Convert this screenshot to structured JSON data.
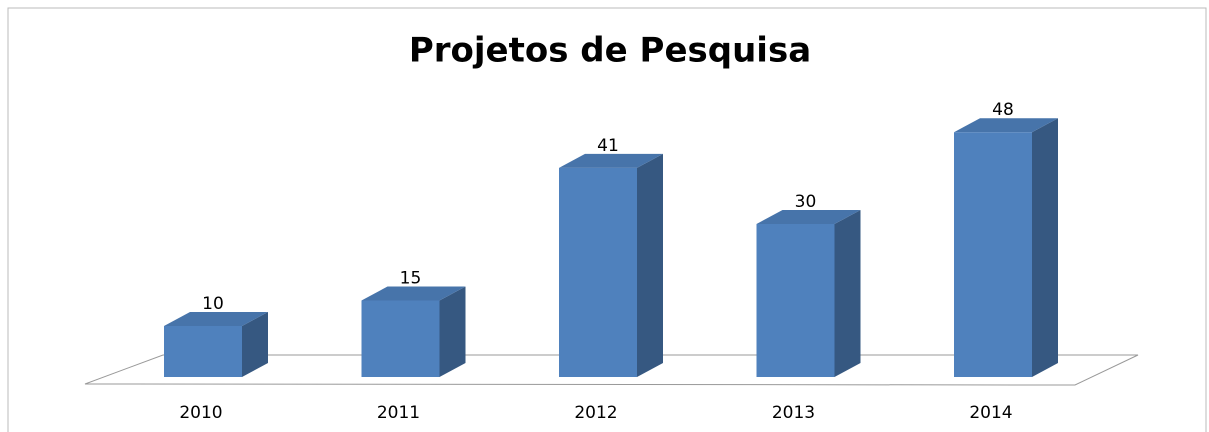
{
  "chart_data": {
    "type": "bar3d",
    "title": "Projetos de Pesquisa",
    "categories": [
      "2010",
      "2011",
      "2012",
      "2013",
      "2014"
    ],
    "values": [
      10,
      15,
      41,
      30,
      48
    ],
    "color": "#4f81bd"
  }
}
